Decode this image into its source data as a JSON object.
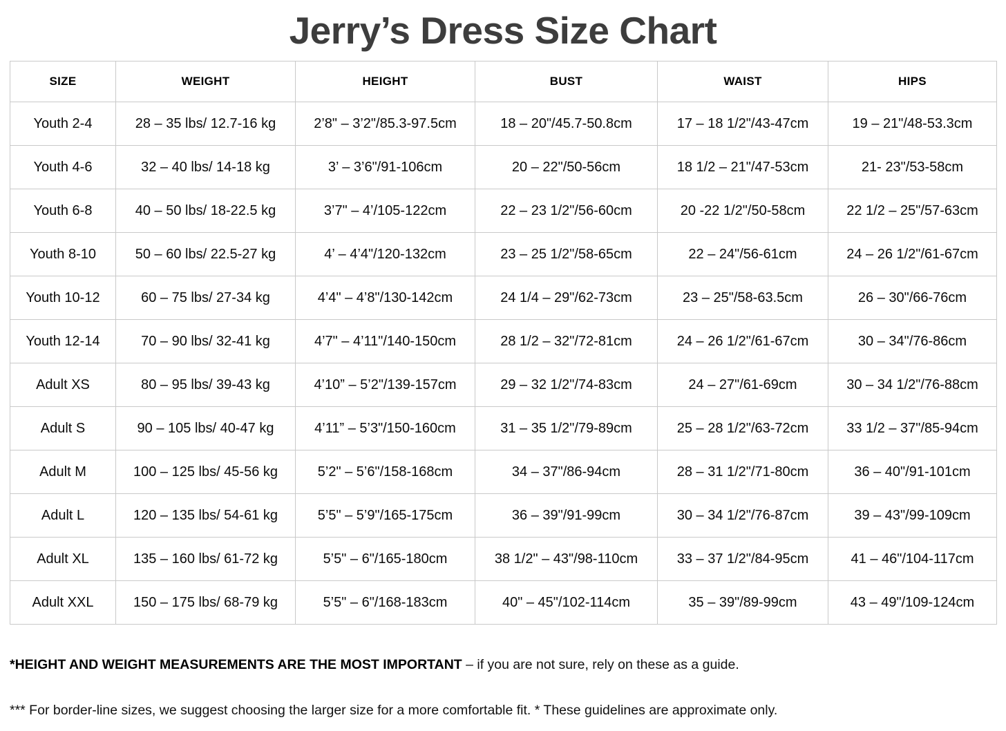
{
  "title": "Jerry’s Dress Size Chart",
  "table": {
    "headers": [
      "SIZE",
      "WEIGHT",
      "HEIGHT",
      "BUST",
      "WAIST",
      "HIPS"
    ],
    "rows": [
      [
        "Youth 2-4",
        "28 – 35 lbs/ 12.7-16 kg",
        "2’8\" – 3’2\"/85.3-97.5cm",
        "18 – 20\"/45.7-50.8cm",
        "17 – 18 1/2\"/43-47cm",
        "19 – 21\"/48-53.3cm"
      ],
      [
        "Youth 4-6",
        "32 – 40 lbs/ 14-18 kg",
        "3’ – 3’6\"/91-106cm",
        "20 – 22\"/50-56cm",
        "18 1/2 – 21\"/47-53cm",
        "21- 23\"/53-58cm"
      ],
      [
        "Youth 6-8",
        "40 – 50 lbs/ 18-22.5 kg",
        "3’7\" – 4’/105-122cm",
        "22 – 23 1/2\"/56-60cm",
        "20 -22 1/2\"/50-58cm",
        "22 1/2 – 25\"/57-63cm"
      ],
      [
        "Youth 8-10",
        "50 – 60 lbs/ 22.5-27 kg",
        "4’ – 4’4\"/120-132cm",
        "23 – 25 1/2\"/58-65cm",
        "22 – 24\"/56-61cm",
        "24 – 26 1/2\"/61-67cm"
      ],
      [
        "Youth 10-12",
        "60 – 75 lbs/ 27-34 kg",
        "4’4\" – 4’8\"/130-142cm",
        "24 1/4 – 29\"/62-73cm",
        "23 – 25\"/58-63.5cm",
        "26 – 30\"/66-76cm"
      ],
      [
        "Youth 12-14",
        "70 – 90 lbs/ 32-41 kg",
        "4’7\" – 4’11\"/140-150cm",
        "28 1/2 – 32\"/72-81cm",
        "24 – 26 1/2\"/61-67cm",
        "30 – 34\"/76-86cm"
      ],
      [
        "Adult XS",
        "80 – 95 lbs/ 39-43 kg",
        "4’10” – 5’2\"/139-157cm",
        "29 – 32 1/2\"/74-83cm",
        "24 – 27\"/61-69cm",
        "30 – 34 1/2\"/76-88cm"
      ],
      [
        "Adult S",
        "90 – 105 lbs/ 40-47 kg",
        "4’11” – 5’3\"/150-160cm",
        "31 – 35 1/2\"/79-89cm",
        "25 – 28 1/2\"/63-72cm",
        "33 1/2 – 37\"/85-94cm"
      ],
      [
        "Adult M",
        "100 – 125 lbs/ 45-56 kg",
        "5’2\" – 5’6\"/158-168cm",
        "34 – 37\"/86-94cm",
        "28 – 31 1/2\"/71-80cm",
        "36 – 40\"/91-101cm"
      ],
      [
        "Adult L",
        "120 – 135 lbs/ 54-61 kg",
        "5’5\" – 5’9\"/165-175cm",
        "36 – 39\"/91-99cm",
        "30 – 34 1/2\"/76-87cm",
        "39 – 43\"/99-109cm"
      ],
      [
        "Adult XL",
        "135 – 160 lbs/ 61-72 kg",
        "5’5\" – 6\"/165-180cm",
        "38 1/2\" – 43\"/98-110cm",
        "33 – 37 1/2\"/84-95cm",
        "41 – 46\"/104-117cm"
      ],
      [
        "Adult XXL",
        "150 – 175 lbs/ 68-79 kg",
        "5’5\" – 6\"/168-183cm",
        "40\" – 45\"/102-114cm",
        "35 – 39\"/89-99cm",
        "43 – 49\"/109-124cm"
      ]
    ]
  },
  "notes": {
    "note1_bold": "*HEIGHT AND WEIGHT MEASUREMENTS ARE THE MOST IMPORTANT",
    "note1_rest": " – if you are not sure, rely on these as a guide.",
    "note2": "*** For border-line sizes, we suggest choosing the larger size for a more comfortable fit. * These guidelines are approximate only."
  },
  "colors": {
    "title": "#3d3d3d",
    "table_border": "#c9c9c9",
    "text": "#000000",
    "background": "#ffffff"
  }
}
